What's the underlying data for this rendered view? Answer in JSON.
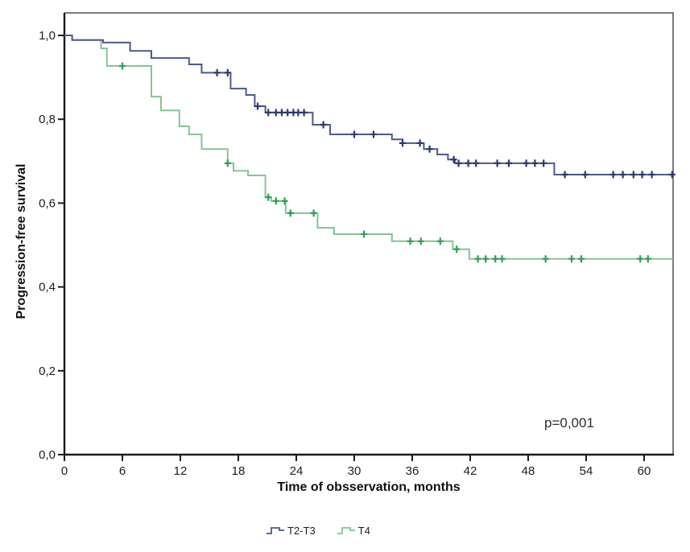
{
  "chart_data": {
    "type": "line",
    "subtype": "kaplan-meier-step-survival",
    "title": "",
    "xlabel": "Time of obsservation, months",
    "ylabel": "Progression-free survival",
    "xlim": [
      0,
      63
    ],
    "ylim": [
      0,
      1.05
    ],
    "grid": false,
    "legend_position": "bottom-center",
    "axis_color": "#1a1a1a",
    "frame_color": "#7a7a7a",
    "tick_label_color": "#1c1c1c",
    "annotation": {
      "text": "p=0,001",
      "x": 49.7,
      "y": 0.07
    },
    "x_ticks": {
      "values": [
        0,
        6,
        12,
        18,
        24,
        30,
        36,
        42,
        48,
        54,
        60
      ],
      "labels": [
        "0",
        "6",
        "12",
        "18",
        "24",
        "30",
        "36",
        "42",
        "48",
        "54",
        "60"
      ]
    },
    "y_ticks": {
      "values": [
        0,
        0.2,
        0.4,
        0.6,
        0.8,
        1.0
      ],
      "labels": [
        "0,0",
        "0,2",
        "0,4",
        "0,6",
        "0,8",
        "1,0"
      ]
    },
    "series": [
      {
        "name": "T2-T3",
        "color": "#4d598d",
        "censor_color": "#2c3a6e",
        "steps": [
          [
            0,
            1.0
          ],
          [
            0.8,
            0.989
          ],
          [
            4.0,
            0.983
          ],
          [
            6.8,
            0.963
          ],
          [
            9.0,
            0.946
          ],
          [
            12.9,
            0.931
          ],
          [
            14.2,
            0.911
          ],
          [
            17.2,
            0.873
          ],
          [
            18.8,
            0.858
          ],
          [
            19.7,
            0.831
          ],
          [
            20.8,
            0.816
          ],
          [
            25.7,
            0.787
          ],
          [
            27.5,
            0.764
          ],
          [
            33.9,
            0.752
          ],
          [
            35.0,
            0.743
          ],
          [
            37.2,
            0.729
          ],
          [
            38.6,
            0.716
          ],
          [
            39.7,
            0.704
          ],
          [
            40.4,
            0.695
          ],
          [
            50.7,
            0.668
          ]
        ],
        "censor_times": [
          15.8,
          16.9,
          20.0,
          21.1,
          21.9,
          22.5,
          23.1,
          23.7,
          24.2,
          24.8,
          26.8,
          30.0,
          32.0,
          35.0,
          36.8,
          37.8,
          40.3,
          40.8,
          41.8,
          42.6,
          44.8,
          46.0,
          47.8,
          48.7,
          49.6,
          51.8,
          53.9,
          56.8,
          57.8,
          58.9,
          59.8,
          60.8,
          62.9
        ]
      },
      {
        "name": "T4",
        "color": "#85c493",
        "censor_color": "#2f9e58",
        "steps": [
          [
            0,
            1.0
          ],
          [
            0.8,
            0.989
          ],
          [
            3.8,
            0.969
          ],
          [
            4.4,
            0.927
          ],
          [
            9.0,
            0.854
          ],
          [
            10.0,
            0.821
          ],
          [
            11.9,
            0.783
          ],
          [
            12.9,
            0.764
          ],
          [
            14.2,
            0.729
          ],
          [
            16.9,
            0.695
          ],
          [
            17.5,
            0.677
          ],
          [
            19.0,
            0.666
          ],
          [
            20.8,
            0.614
          ],
          [
            21.4,
            0.605
          ],
          [
            22.9,
            0.576
          ],
          [
            26.2,
            0.541
          ],
          [
            27.9,
            0.526
          ],
          [
            33.9,
            0.509
          ],
          [
            40.2,
            0.49
          ],
          [
            41.9,
            0.467
          ]
        ],
        "censor_times": [
          6.0,
          16.9,
          21.1,
          21.9,
          22.8,
          23.4,
          25.8,
          31.0,
          35.8,
          36.9,
          38.9,
          40.6,
          42.8,
          43.6,
          44.6,
          45.3,
          49.8,
          52.5,
          53.5,
          59.6,
          60.4
        ]
      }
    ]
  }
}
